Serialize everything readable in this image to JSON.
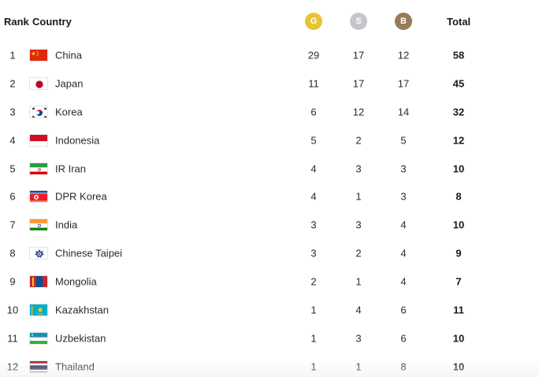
{
  "header": {
    "rank": "Rank",
    "country": "Country",
    "gold": "G",
    "silver": "S",
    "bronze": "B",
    "total": "Total"
  },
  "colors": {
    "gold": "#e8c431",
    "silver": "#c5c5ce",
    "bronze": "#977c58"
  },
  "rows": [
    {
      "rank": "1",
      "country": "China",
      "flag": "china-flag-icon",
      "g": "29",
      "s": "17",
      "b": "12",
      "total": "58"
    },
    {
      "rank": "2",
      "country": "Japan",
      "flag": "japan-flag-icon",
      "g": "11",
      "s": "17",
      "b": "17",
      "total": "45"
    },
    {
      "rank": "3",
      "country": "Korea",
      "flag": "korea-flag-icon",
      "g": "6",
      "s": "12",
      "b": "14",
      "total": "32"
    },
    {
      "rank": "4",
      "country": "Indonesia",
      "flag": "indonesia-flag-icon",
      "g": "5",
      "s": "2",
      "b": "5",
      "total": "12"
    },
    {
      "rank": "5",
      "country": "IR Iran",
      "flag": "iran-flag-icon",
      "g": "4",
      "s": "3",
      "b": "3",
      "total": "10"
    },
    {
      "rank": "6",
      "country": "DPR Korea",
      "flag": "dpr-korea-flag-icon",
      "g": "4",
      "s": "1",
      "b": "3",
      "total": "8"
    },
    {
      "rank": "7",
      "country": "India",
      "flag": "india-flag-icon",
      "g": "3",
      "s": "3",
      "b": "4",
      "total": "10"
    },
    {
      "rank": "8",
      "country": "Chinese Taipei",
      "flag": "chinese-taipei-flag-icon",
      "g": "3",
      "s": "2",
      "b": "4",
      "total": "9"
    },
    {
      "rank": "9",
      "country": "Mongolia",
      "flag": "mongolia-flag-icon",
      "g": "2",
      "s": "1",
      "b": "4",
      "total": "7"
    },
    {
      "rank": "10",
      "country": "Kazakhstan",
      "flag": "kazakhstan-flag-icon",
      "g": "1",
      "s": "4",
      "b": "6",
      "total": "11"
    },
    {
      "rank": "11",
      "country": "Uzbekistan",
      "flag": "uzbekistan-flag-icon",
      "g": "1",
      "s": "3",
      "b": "6",
      "total": "10"
    },
    {
      "rank": "12",
      "country": "Thailand",
      "flag": "thailand-flag-icon",
      "g": "1",
      "s": "1",
      "b": "8",
      "total": "10"
    }
  ]
}
